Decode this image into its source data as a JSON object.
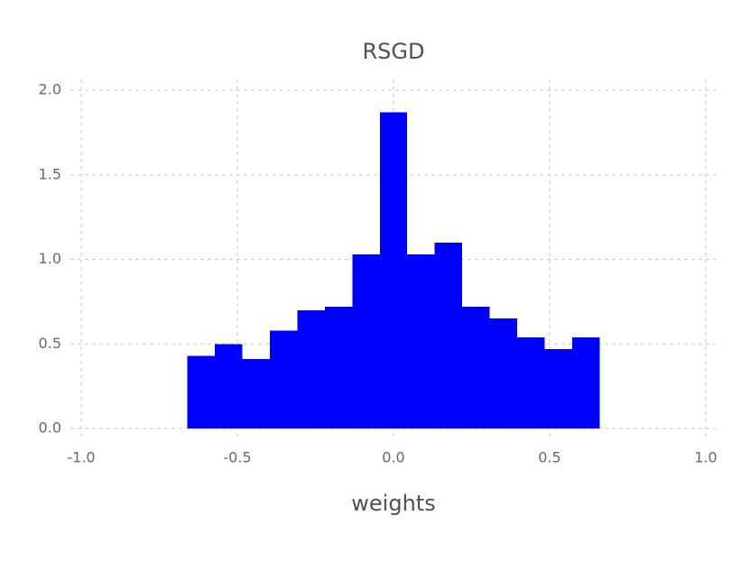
{
  "chart_data": {
    "type": "histogram",
    "title": "RSGD",
    "x_label": "weights",
    "bins": [
      -0.66,
      -0.572,
      -0.484,
      -0.396,
      -0.308,
      -0.22,
      -0.132,
      -0.044,
      0.044,
      0.132,
      0.22,
      0.308,
      0.396,
      0.484,
      0.572,
      0.66
    ],
    "values": [
      0.43,
      0.5,
      0.41,
      0.58,
      0.7,
      0.72,
      1.03,
      1.87,
      1.03,
      1.1,
      0.72,
      0.65,
      0.54,
      0.47,
      0.54
    ],
    "color": "#0000ff",
    "xlim": [
      -1,
      1
    ],
    "xticks": [
      {
        "value": -1,
        "label": "-1.0"
      },
      {
        "value": -0.5,
        "label": "-0.5"
      },
      {
        "value": 0,
        "label": "0.0"
      },
      {
        "value": 0.5,
        "label": "0.5"
      },
      {
        "value": 1,
        "label": "1.0"
      }
    ],
    "ylim": [
      0,
      2
    ],
    "yticks": [
      {
        "value": 0,
        "label": "0.0"
      },
      {
        "value": 0.5,
        "label": "0.5"
      },
      {
        "value": 1,
        "label": "1.0"
      },
      {
        "value": 1.5,
        "label": "1.5"
      },
      {
        "value": 2,
        "label": "2.0"
      }
    ],
    "grid": true
  }
}
